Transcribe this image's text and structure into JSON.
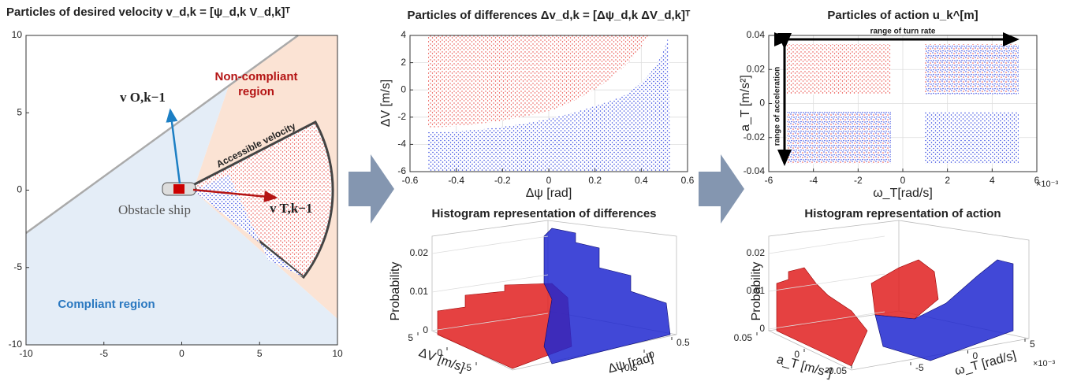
{
  "left": {
    "title": "Particles of desired velocity  v_d,k = [ψ_d,k   V_d,k]ᵀ",
    "xlim": [
      -10,
      10
    ],
    "xticks": [
      -10,
      -5,
      0,
      5,
      10
    ],
    "ylim": [
      -10,
      10
    ],
    "yticks": [
      -10,
      -5,
      0,
      5,
      10
    ],
    "non_compliant": [
      "Non-compliant",
      "region"
    ],
    "compliant": "Compliant region",
    "accessible": "Accessible velocity",
    "ship": "Obstacle ship",
    "vo": "v O,k−1",
    "vt": "v T,k−1"
  },
  "diff_scatter": {
    "title": "Particles of differences Δv_d,k = [Δψ_d,k   ΔV_d,k]ᵀ",
    "xlabel": "Δψ [rad]",
    "ylabel": "ΔV [m/s]",
    "xlim": [
      -0.6,
      0.6
    ],
    "xticks": [
      -0.6,
      -0.4,
      -0.2,
      0,
      0.2,
      0.4,
      0.6
    ],
    "ylim": [
      -6,
      4
    ],
    "yticks": [
      -6,
      -4,
      -2,
      0,
      2,
      4
    ],
    "grid": true
  },
  "diff_hist": {
    "title": "Histogram representation of differences",
    "zlabel": "Probability",
    "zticks": [
      0,
      0.01,
      0.02
    ],
    "ylabel": "ΔV [m/s]",
    "yticks": [
      5,
      0,
      -5
    ],
    "xlabel": "Δψ [rad]",
    "xticks": [
      0.5,
      0,
      -0.5
    ]
  },
  "action_scatter": {
    "title": "Particles of action  u_k^[m]",
    "xlabel": "ω_T[rad/s]",
    "ylabel": "a_T [m/s²]",
    "x_multiplier": "×10⁻³",
    "xlim": [
      -6,
      6
    ],
    "xticks": [
      -6,
      -4,
      -2,
      0,
      2,
      4,
      6
    ],
    "ylim": [
      -0.04,
      0.04
    ],
    "yticks": [
      -0.04,
      -0.02,
      0,
      0.02,
      0.04
    ],
    "grid": true,
    "annotations": {
      "turn_rate": "range of turn rate",
      "acceleration": "range of acceleration"
    }
  },
  "action_hist": {
    "title": "Histogram representation of action",
    "zlabel": "Probability",
    "zticks": [
      0,
      0.01,
      0.02
    ],
    "ylabel": "a_T [m/s²]",
    "yticks": [
      0.05,
      0,
      -0.05
    ],
    "xlabel": "ω_T [rad/s]",
    "xticks": [
      5,
      0,
      -5
    ],
    "x_multiplier": "×10⁻³"
  }
}
